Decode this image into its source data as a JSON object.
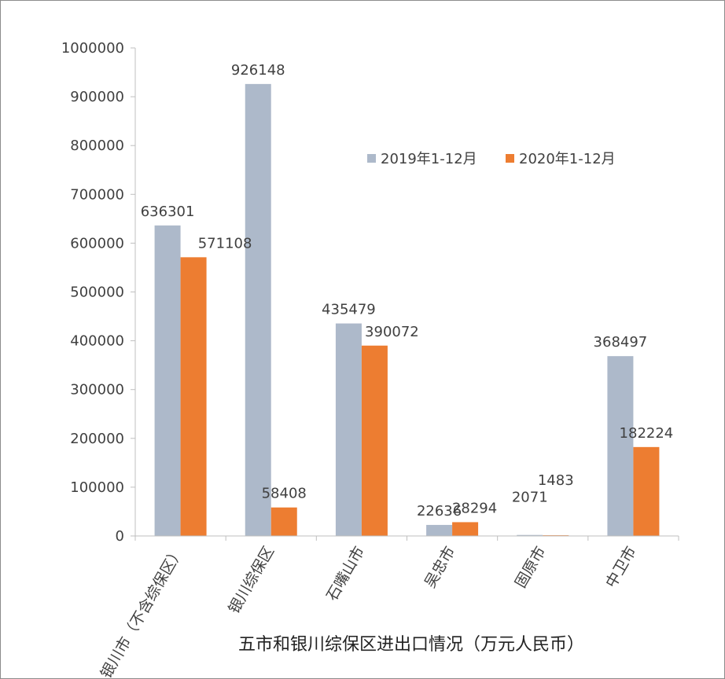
{
  "chart_data": {
    "type": "bar",
    "categories": [
      "银川市（不含综保区）",
      "银川综保区",
      "石嘴山市",
      "吴忠市",
      "固原市",
      "中卫市"
    ],
    "series": [
      {
        "name": "2019年1-12月",
        "color": "#adb9ca",
        "values": [
          636301,
          926148,
          435479,
          22636,
          2071,
          368497
        ]
      },
      {
        "name": "2020年1-12月",
        "color": "#ed7d31",
        "values": [
          571108,
          58408,
          390072,
          28294,
          1483,
          182224
        ]
      }
    ],
    "yticks": [
      "0",
      "100000",
      "200000",
      "300000",
      "400000",
      "500000",
      "600000",
      "700000",
      "800000",
      "900000",
      "1000000"
    ],
    "ylim": [
      0,
      1000000
    ],
    "xlabel": "五市和银川综保区进出口情况（万元人民币）",
    "ylabel": "",
    "legend_position": "top-right",
    "grid": false
  }
}
